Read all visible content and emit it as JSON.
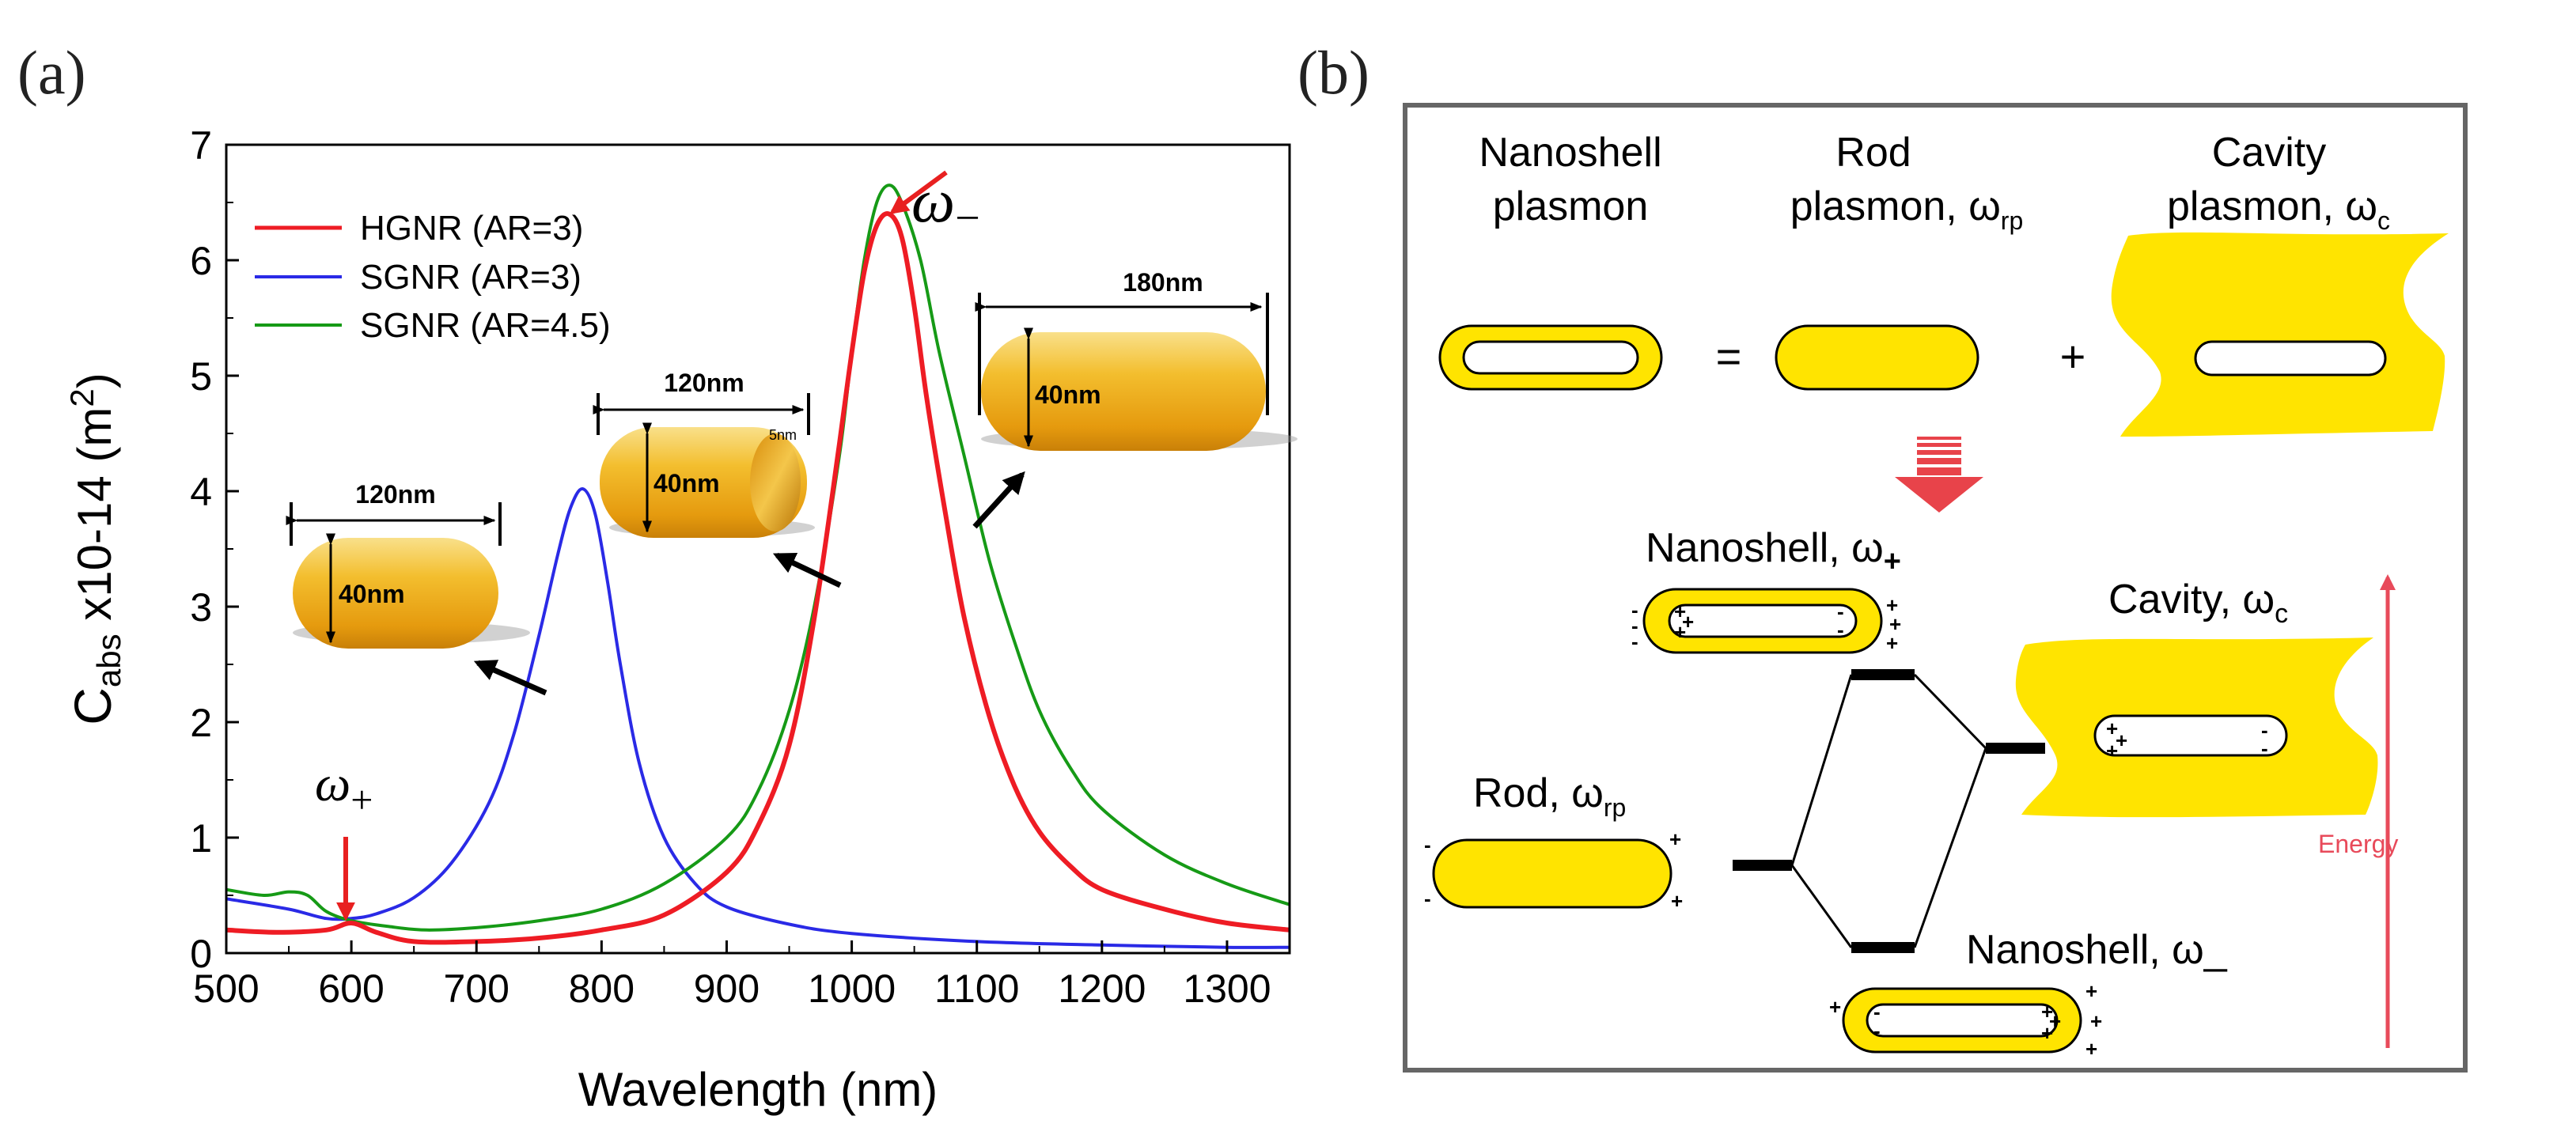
{
  "panel_a": {
    "label": "(a)"
  },
  "panel_b": {
    "label": "(b)"
  },
  "chart_data": {
    "type": "line",
    "title": "",
    "xlabel": "Wavelength (nm)",
    "ylabel_prefix": "C",
    "ylabel_sub": "abs",
    "ylabel_rest": " x10-14 (m",
    "ylabel_sup": "2",
    "ylabel_end": ")",
    "xlim": [
      500,
      1350
    ],
    "ylim": [
      0,
      7
    ],
    "xticks": [
      "500",
      "600",
      "700",
      "800",
      "900",
      "1000",
      "1100",
      "1200",
      "1300"
    ],
    "yticks": [
      "0",
      "1",
      "2",
      "3",
      "4",
      "5",
      "6",
      "7"
    ],
    "legend_position": "top-left",
    "series": [
      {
        "name": "HGNR (AR=3)",
        "color": "#ee1c24",
        "x": [
          500,
          540,
          580,
          600,
          620,
          650,
          700,
          750,
          800,
          850,
          900,
          925,
          950,
          970,
          990,
          1000,
          1010,
          1020,
          1030,
          1040,
          1050,
          1060,
          1075,
          1090,
          1110,
          1130,
          1150,
          1175,
          1200,
          1250,
          1300,
          1350
        ],
        "y": [
          0.2,
          0.18,
          0.2,
          0.26,
          0.18,
          0.1,
          0.1,
          0.13,
          0.2,
          0.33,
          0.7,
          1.1,
          1.8,
          2.9,
          4.4,
          5.2,
          5.9,
          6.3,
          6.4,
          6.2,
          5.6,
          4.8,
          3.8,
          2.9,
          2.05,
          1.45,
          1.05,
          0.75,
          0.55,
          0.38,
          0.26,
          0.2
        ]
      },
      {
        "name": "SGNR (AR=3)",
        "color": "#2a2ae6",
        "x": [
          500,
          550,
          580,
          600,
          620,
          650,
          680,
          710,
          730,
          750,
          765,
          775,
          785,
          795,
          805,
          815,
          830,
          850,
          875,
          900,
          950,
          1000,
          1100,
          1200,
          1300,
          1350
        ],
        "y": [
          0.47,
          0.38,
          0.3,
          0.3,
          0.34,
          0.48,
          0.78,
          1.3,
          1.9,
          2.75,
          3.45,
          3.85,
          4.02,
          3.8,
          3.2,
          2.5,
          1.65,
          1.0,
          0.6,
          0.4,
          0.25,
          0.17,
          0.1,
          0.07,
          0.05,
          0.05
        ]
      },
      {
        "name": "SGNR (AR=4.5)",
        "color": "#169a16",
        "x": [
          500,
          530,
          550,
          565,
          580,
          600,
          630,
          660,
          700,
          750,
          800,
          850,
          900,
          925,
          950,
          970,
          990,
          1000,
          1010,
          1020,
          1030,
          1040,
          1055,
          1070,
          1090,
          1110,
          1130,
          1150,
          1175,
          1200,
          1250,
          1300,
          1350
        ],
        "y": [
          0.55,
          0.5,
          0.53,
          0.5,
          0.36,
          0.28,
          0.23,
          0.2,
          0.22,
          0.28,
          0.38,
          0.6,
          1.0,
          1.4,
          2.1,
          3.0,
          4.3,
          5.2,
          6.0,
          6.5,
          6.65,
          6.5,
          6.0,
          5.2,
          4.3,
          3.4,
          2.7,
          2.1,
          1.6,
          1.25,
          0.85,
          0.6,
          0.42
        ]
      }
    ],
    "annotations": [
      {
        "text": "ω",
        "sub": "−",
        "target_x": 1030,
        "target_y": 6.4
      },
      {
        "text": "ω",
        "sub": "+",
        "target_x": 600,
        "target_y": 0.28
      }
    ],
    "insets": [
      {
        "length_label": "120nm",
        "diameter_label": "40nm",
        "type": "solid rod (SGNR, AR=3)"
      },
      {
        "length_label": "120nm",
        "diameter_label": "40nm",
        "shell_label": "5nm",
        "type": "hollow rod (HGNR, AR=3)"
      },
      {
        "length_label": "180nm",
        "diameter_label": "40nm",
        "type": "solid rod (SGNR, AR=4.5)"
      }
    ]
  },
  "diagram": {
    "headers": {
      "nanoshell": [
        "Nanoshell",
        "plasmon"
      ],
      "rod": [
        "Rod",
        "plasmon, ω"
      ],
      "rod_sub": "rp",
      "cavity": [
        "Cavity",
        "plasmon, ω"
      ],
      "cavity_sub": "c"
    },
    "equals": "=",
    "plus": "+",
    "nanoshell_plus_label": "Nanoshell, ω",
    "nanoshell_plus_sub": "+",
    "cavity_label": "Cavity, ω",
    "cavity_sub": "c",
    "rod_label": "Rod, ω",
    "rod_sub": "rp",
    "nanoshell_minus_label": "Nanoshell, ω_",
    "energy_label": "Energy",
    "charge_plus": "+",
    "charge_minus": "-",
    "colors": {
      "gold": "#ffe400",
      "arrow": "#e8434a",
      "energy": "#e84a5a"
    }
  }
}
